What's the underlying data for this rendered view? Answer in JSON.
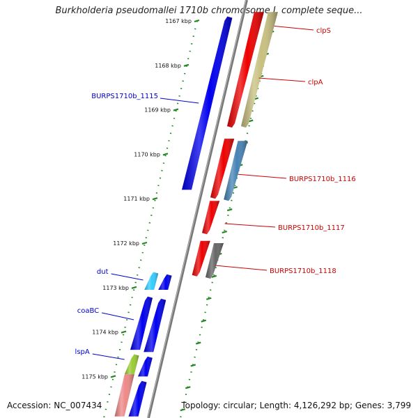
{
  "title": "Burkholderia pseudomallei 1710b chromosome I, complete seque...",
  "accession": "Accession: NC_007434",
  "summary": "Topology: circular; Length: 4,126,292 bp; Genes: 3,799",
  "ruler": [
    {
      "label": "1167 kbp",
      "kbp": 1167
    },
    {
      "label": "1168 kbp",
      "kbp": 1168
    },
    {
      "label": "1169 kbp",
      "kbp": 1169
    },
    {
      "label": "1170 kbp",
      "kbp": 1170
    },
    {
      "label": "1171 kbp",
      "kbp": 1171
    },
    {
      "label": "1172 kbp",
      "kbp": 1172
    },
    {
      "label": "1173 kbp",
      "kbp": 1173
    },
    {
      "label": "1174 kbp",
      "kbp": 1174
    },
    {
      "label": "1175 kbp",
      "kbp": 1175
    }
  ],
  "genes": [
    {
      "name": "BURPS1710b_1115",
      "side": "left",
      "start_kbp": 1166.9,
      "end_kbp": 1170.8,
      "track": -1,
      "color": "#0000ee",
      "strand": "forward"
    },
    {
      "name": "dut",
      "side": "left",
      "start_kbp": 1172.65,
      "end_kbp": 1173.05,
      "track": -2,
      "color": "#33ccff",
      "strand": "forward"
    },
    {
      "name": "",
      "side": "none",
      "start_kbp": 1172.7,
      "end_kbp": 1173.05,
      "track": -1,
      "color": "#0000ee",
      "strand": "forward"
    },
    {
      "name": "coaBC",
      "side": "left",
      "start_kbp": 1173.2,
      "end_kbp": 1174.4,
      "track": -2,
      "color": "#0000ee",
      "strand": "forward"
    },
    {
      "name": "",
      "side": "none",
      "start_kbp": 1173.25,
      "end_kbp": 1174.45,
      "track": -1,
      "color": "#0000ee",
      "strand": "forward"
    },
    {
      "name": "lspA",
      "side": "left",
      "start_kbp": 1174.5,
      "end_kbp": 1174.95,
      "track": -2,
      "color": "#99cc33",
      "strand": "forward"
    },
    {
      "name": "",
      "side": "none",
      "start_kbp": 1174.55,
      "end_kbp": 1175.0,
      "track": -1,
      "color": "#0000ee",
      "strand": "forward"
    },
    {
      "name": "",
      "side": "none",
      "start_kbp": 1174.95,
      "end_kbp": 1175.9,
      "track": -2,
      "color": "#ee8888",
      "strand": "none"
    },
    {
      "name": "",
      "side": "none",
      "start_kbp": 1175.1,
      "end_kbp": 1175.9,
      "track": -1,
      "color": "#0000ee",
      "strand": "forward"
    },
    {
      "name": "clpS",
      "side": "right",
      "start_kbp": 1166.8,
      "end_kbp": 1169.4,
      "track": 1,
      "color": "#ee0000",
      "strand": "reverse"
    },
    {
      "name": "clpA",
      "side": "right",
      "start_kbp": 1166.8,
      "end_kbp": 1169.4,
      "track": 2,
      "color": "#c8c080",
      "strand": "reverse"
    },
    {
      "name": "BURPS1710b_1116",
      "side": "right",
      "start_kbp": 1169.65,
      "end_kbp": 1171.0,
      "track": 1,
      "color": "#ee0000",
      "strand": "reverse"
    },
    {
      "name": "",
      "side": "none",
      "start_kbp": 1169.7,
      "end_kbp": 1171.05,
      "track": 2,
      "color": "#4682b4",
      "strand": "reverse"
    },
    {
      "name": "BURPS1710b_1117",
      "side": "right",
      "start_kbp": 1171.05,
      "end_kbp": 1171.8,
      "track": 1,
      "color": "#ee0000",
      "strand": "reverse"
    },
    {
      "name": "BURPS1710b_1118",
      "side": "right",
      "start_kbp": 1171.95,
      "end_kbp": 1172.75,
      "track": 1,
      "color": "#ee0000",
      "strand": "reverse"
    },
    {
      "name": "",
      "side": "none",
      "start_kbp": 1172.0,
      "end_kbp": 1172.8,
      "track": 2,
      "color": "#666666",
      "strand": "reverse"
    }
  ]
}
